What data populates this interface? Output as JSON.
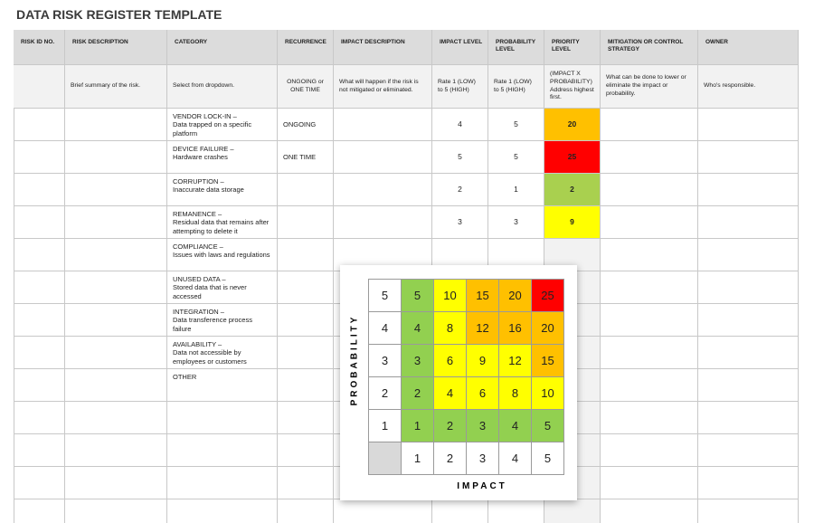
{
  "title": "DATA RISK REGISTER TEMPLATE",
  "table": {
    "headers": [
      "RISK ID NO.",
      "RISK DESCRIPTION",
      "CATEGORY",
      "RECURRENCE",
      "IMPACT DESCRIPTION",
      "IMPACT LEVEL",
      "PROBABILITY LEVEL",
      "PRIORITY LEVEL",
      "MITIGATION OR CONTROL STRATEGY",
      "OWNER"
    ],
    "instructions": [
      null,
      "Brief summary of the risk.",
      "Select from dropdown.",
      "ONGOING or ONE TIME",
      "What will happen if the risk is not mitigated or eliminated.",
      "Rate 1 (LOW) to 5 (HIGH)",
      "Rate 1 (LOW) to 5 (HIGH)",
      "(IMPACT X PROBABILITY) Address highest first.",
      "What can be done to lower or eliminate the impact or probability.",
      "Who's responsible."
    ],
    "rows": [
      {
        "category": "VENDOR LOCK-IN –",
        "detail": "Data trapped on a specific platform",
        "recurrence": "ONGOING",
        "impact": 4,
        "probability": 5,
        "priority": 20,
        "priority_color": "#ffc000"
      },
      {
        "category": "DEVICE FAILURE –",
        "detail": "Hardware crashes",
        "recurrence": "ONE TIME",
        "impact": 5,
        "probability": 5,
        "priority": 25,
        "priority_color": "#ff0000"
      },
      {
        "category": "CORRUPTION –",
        "detail": "Inaccurate data storage",
        "impact": 2,
        "probability": 1,
        "priority": 2,
        "priority_color": "#a9d04f"
      },
      {
        "category": "REMANENCE –",
        "detail": "Residual data that remains after attempting to delete it",
        "impact": 3,
        "probability": 3,
        "priority": 9,
        "priority_color": "#ffff00"
      },
      {
        "category": "COMPLIANCE –",
        "detail": "Issues with laws and regulations"
      },
      {
        "category": "UNUSED DATA –",
        "detail": "Stored data that is never accessed"
      },
      {
        "category": "INTEGRATION –",
        "detail": "Data transference process failure"
      },
      {
        "category": "AVAILABILITY –",
        "detail": "Data not accessible by employees or customers"
      },
      {
        "category": "OTHER"
      }
    ]
  },
  "matrix": {
    "y_label": "PROBABILITY",
    "x_label": "IMPACT",
    "probability_levels": [
      5,
      4,
      3,
      2,
      1
    ],
    "impact_levels": [
      1,
      2,
      3,
      4,
      5
    ],
    "cells": [
      [
        5,
        10,
        15,
        20,
        25
      ],
      [
        4,
        8,
        12,
        16,
        20
      ],
      [
        3,
        6,
        9,
        12,
        15
      ],
      [
        2,
        4,
        6,
        8,
        10
      ],
      [
        1,
        2,
        3,
        4,
        5
      ]
    ],
    "colors": [
      [
        "#92d050",
        "#ffff00",
        "#ffc000",
        "#ffc000",
        "#ff0000"
      ],
      [
        "#92d050",
        "#ffff00",
        "#ffc000",
        "#ffc000",
        "#ffc000"
      ],
      [
        "#92d050",
        "#ffff00",
        "#ffff00",
        "#ffff00",
        "#ffc000"
      ],
      [
        "#92d050",
        "#ffff00",
        "#ffff00",
        "#ffff00",
        "#ffff00"
      ],
      [
        "#92d050",
        "#92d050",
        "#92d050",
        "#92d050",
        "#92d050"
      ]
    ]
  }
}
